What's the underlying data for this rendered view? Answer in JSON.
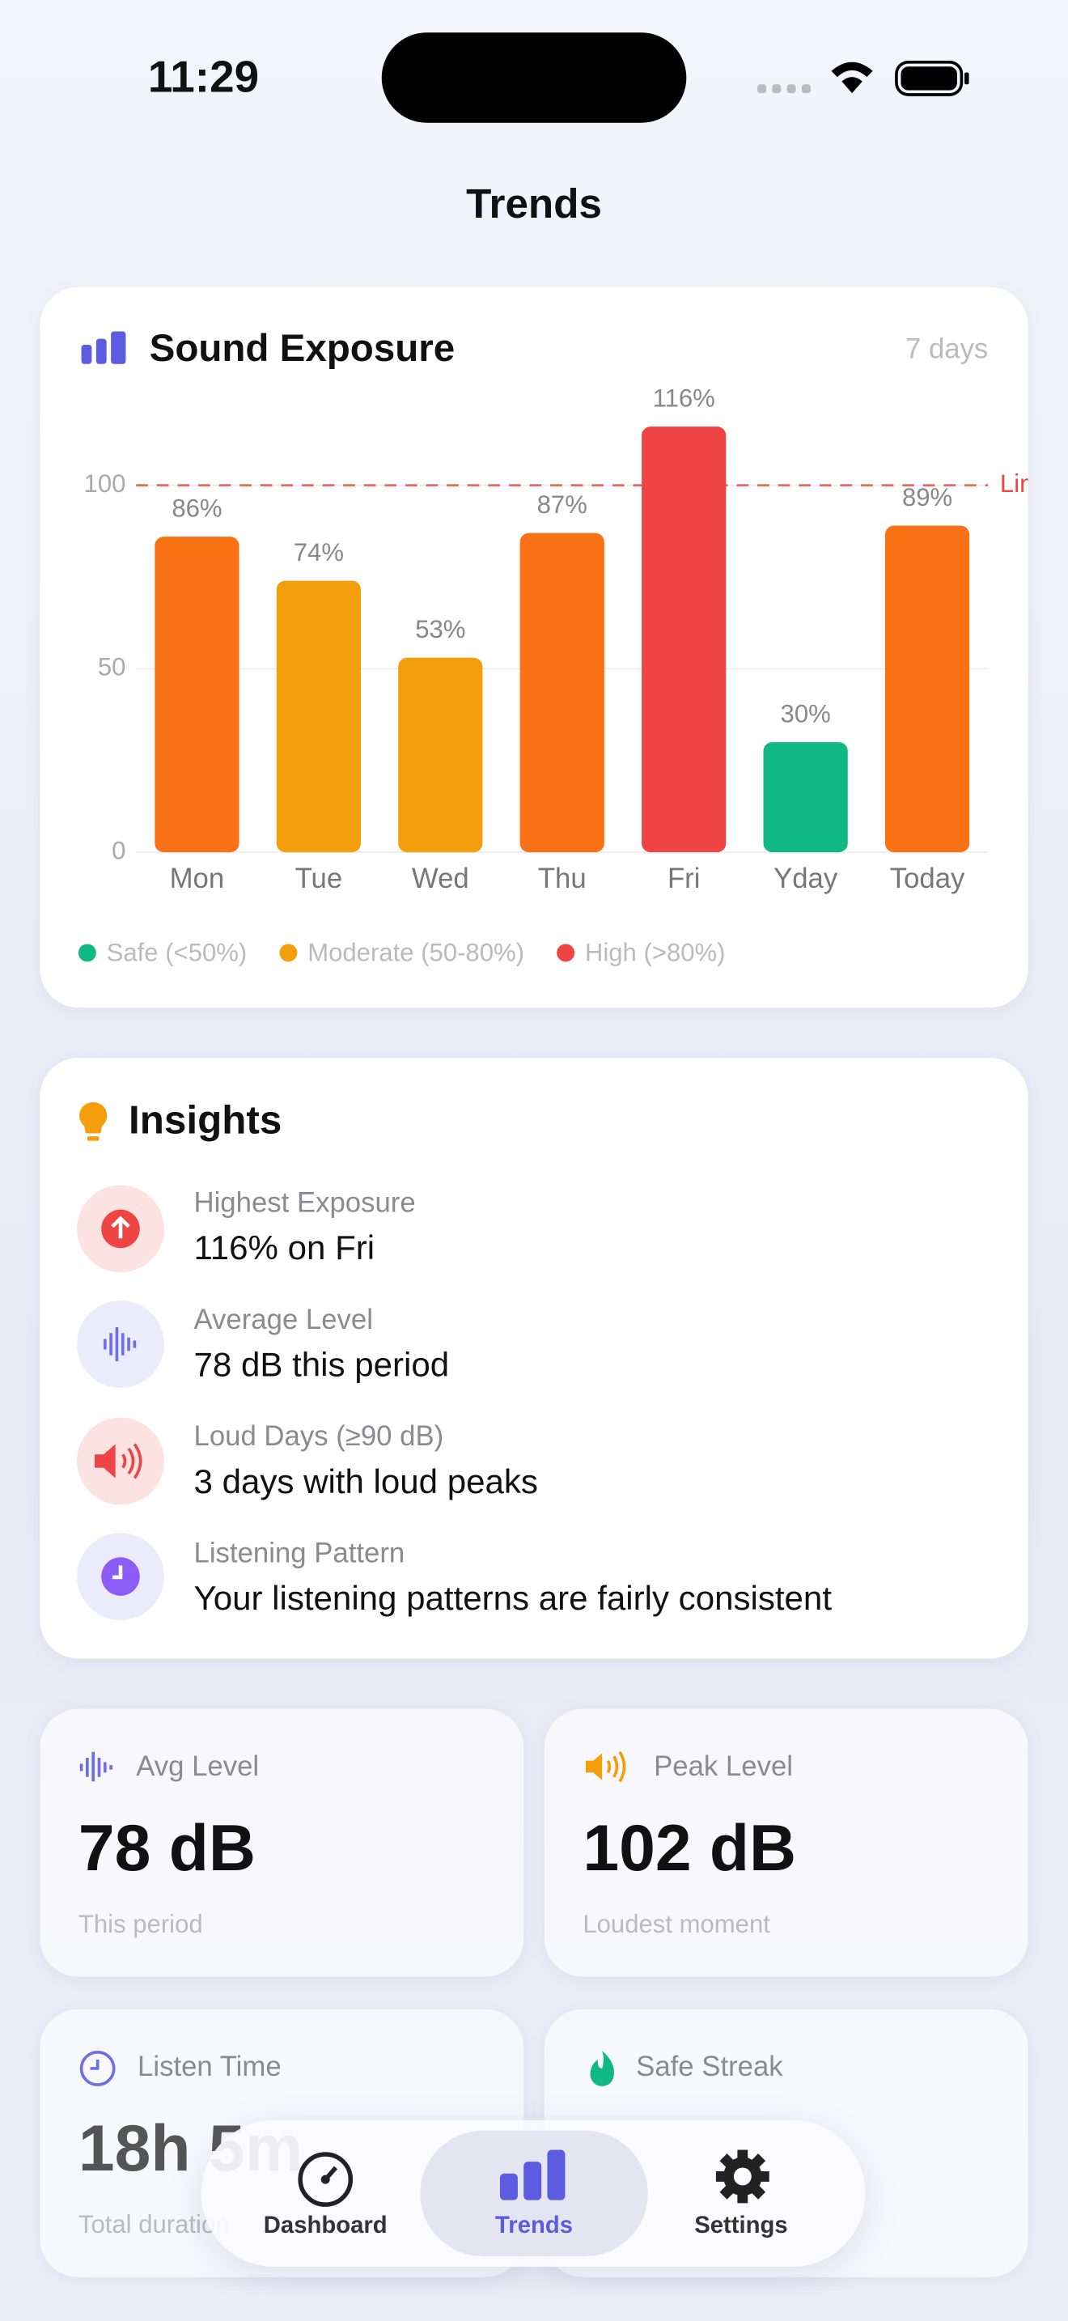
{
  "status": {
    "time": "11:29"
  },
  "header": {
    "title": "Trends"
  },
  "chart_data": {
    "type": "bar",
    "title": "Sound Exposure",
    "subtitle": "7 days",
    "categories": [
      "Mon",
      "Tue",
      "Wed",
      "Thu",
      "Fri",
      "Yday",
      "Today"
    ],
    "values": [
      86,
      74,
      53,
      87,
      116,
      30,
      89
    ],
    "value_labels": [
      "86%",
      "74%",
      "53%",
      "87%",
      "116%",
      "30%",
      "89%"
    ],
    "colors": [
      "#f97316",
      "#f59e0b",
      "#f59e0b",
      "#f97316",
      "#ef4444",
      "#10b981",
      "#f97316"
    ],
    "ylim": [
      0,
      120
    ],
    "yticks": [
      0,
      50,
      100
    ],
    "grid": true,
    "reference_line": {
      "value": 100,
      "label": "Limit",
      "color": "#ef4444"
    },
    "legend": [
      {
        "name": "Safe (<50%)",
        "color": "#10b981"
      },
      {
        "name": "Moderate (50-80%)",
        "color": "#f59e0b"
      },
      {
        "name": "High (>80%)",
        "color": "#ef4444"
      }
    ]
  },
  "insights": {
    "title": "Insights",
    "items": [
      {
        "label": "Highest Exposure",
        "text": "116% on Fri"
      },
      {
        "label": "Average Level",
        "text": "78 dB this period"
      },
      {
        "label": "Loud Days (≥90 dB)",
        "text": "3 days with loud peaks"
      },
      {
        "label": "Listening Pattern",
        "text": "Your listening patterns are fairly consistent"
      }
    ]
  },
  "stats": [
    {
      "label": "Avg Level",
      "value": "78 dB",
      "sub": "This period"
    },
    {
      "label": "Peak Level",
      "value": "102 dB",
      "sub": "Loudest moment"
    },
    {
      "label": "Listen Time",
      "value": "18h 5m",
      "sub": "Total duration"
    },
    {
      "label": "Safe Streak"
    }
  ],
  "tabs": [
    "Dashboard",
    "Trends",
    "Settings"
  ]
}
